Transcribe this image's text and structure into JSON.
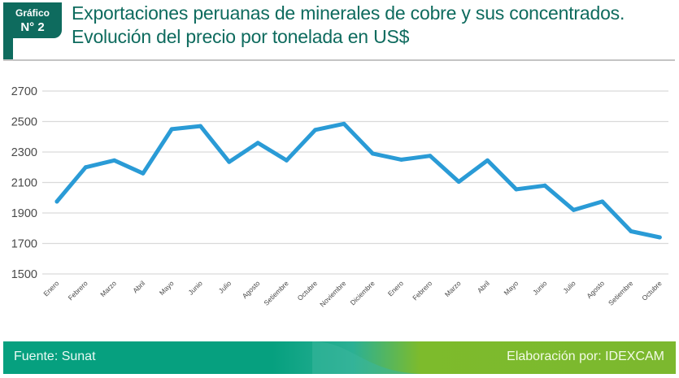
{
  "badge": {
    "line1": "Gráfico",
    "line2": "N° 2"
  },
  "title": {
    "line1": "Exportaciones peruanas de minerales de cobre y sus concentrados.",
    "line2": "Evolución del precio por tonelada en US$"
  },
  "footer": {
    "source": "Fuente: Sunat",
    "credit": "Elaboración por:  IDEXCAM"
  },
  "colors": {
    "line": "#2a9bd6",
    "brand": "#0e6b5e",
    "grid": "#d9d9d9"
  },
  "chart_data": {
    "type": "line",
    "title": "Exportaciones peruanas de minerales de cobre y sus concentrados. Evolución del precio por tonelada en US$",
    "xlabel": "",
    "ylabel": "",
    "ylim": [
      1500,
      2700
    ],
    "yticks": [
      1500,
      1700,
      1900,
      2100,
      2300,
      2500,
      2700
    ],
    "grid": true,
    "legend": "none",
    "categories": [
      "Enero",
      "Febrero",
      "Marzo",
      "Abril",
      "Mayo",
      "Junio",
      "Julio",
      "Agosto",
      "Setiembre",
      "Octubre",
      "Noviembre",
      "Diciembre",
      "Enero",
      "Febrero",
      "Marzo",
      "Abril",
      "Mayo",
      "Junio",
      "Julio",
      "Agosto",
      "Setiembre",
      "Octubre"
    ],
    "series": [
      {
        "name": "Precio por tonelada (US$)",
        "values": [
          1975,
          2200,
          2245,
          2160,
          2450,
          2470,
          2235,
          2360,
          2245,
          2445,
          2485,
          2290,
          2250,
          2275,
          2105,
          2245,
          2055,
          2080,
          1920,
          1975,
          1780,
          1740
        ]
      }
    ]
  }
}
